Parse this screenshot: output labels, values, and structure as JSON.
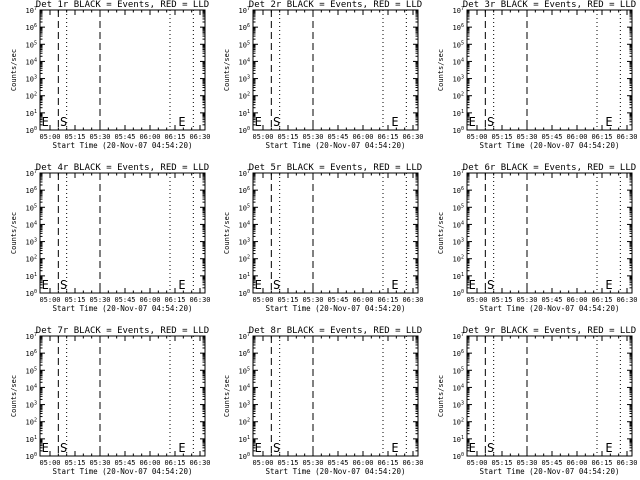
{
  "figure": {
    "background": "#ffffff",
    "foreground": "#000000",
    "event_color": "#000000",
    "lld_color": "#ff0000"
  },
  "chart_data": [
    {
      "type": "line",
      "title": "Det 1r BLACK = Events, RED = LLD",
      "xlabel": "Start Time (20-Nov-07 04:54:20)",
      "ylabel": "Counts/sec",
      "y_scale": "log",
      "ylim": [
        1,
        10000000
      ],
      "xticks": [
        "05:00",
        "05:15",
        "05:30",
        "05:45",
        "06:00",
        "06:15",
        "06:30"
      ],
      "yticks": [
        "10^0",
        "10^1",
        "10^2",
        "10^3",
        "10^4",
        "10^5",
        "10^6",
        "10^7"
      ],
      "markers": [
        {
          "label": "E",
          "x": "04:55"
        },
        {
          "label": "S",
          "x": "05:06"
        },
        {
          "label": "E",
          "x": "06:17"
        }
      ],
      "dashed_lines": [
        "05:05",
        "05:30"
      ],
      "dotted_lines": [
        "05:10",
        "06:12",
        "06:26"
      ],
      "series": []
    },
    {
      "type": "line",
      "title": "Det 2r BLACK = Events, RED = LLD",
      "xlabel": "Start Time (20-Nov-07 04:54:20)",
      "ylabel": "Counts/sec",
      "y_scale": "log",
      "ylim": [
        1,
        10000000
      ],
      "xticks": [
        "05:00",
        "05:15",
        "05:30",
        "05:45",
        "06:00",
        "06:15",
        "06:30"
      ],
      "yticks": [
        "10^0",
        "10^1",
        "10^2",
        "10^3",
        "10^4",
        "10^5",
        "10^6",
        "10^7"
      ],
      "markers": [
        {
          "label": "E",
          "x": "04:55"
        },
        {
          "label": "S",
          "x": "05:06"
        },
        {
          "label": "E",
          "x": "06:17"
        }
      ],
      "dashed_lines": [
        "05:05",
        "05:30"
      ],
      "dotted_lines": [
        "05:10",
        "06:12",
        "06:26"
      ],
      "series": []
    },
    {
      "type": "line",
      "title": "Det 3r BLACK = Events, RED = LLD",
      "xlabel": "Start Time (20-Nov-07 04:54:20)",
      "ylabel": "Counts/sec",
      "y_scale": "log",
      "ylim": [
        1,
        10000000
      ],
      "xticks": [
        "05:00",
        "05:15",
        "05:30",
        "05:45",
        "06:00",
        "06:15",
        "06:30"
      ],
      "yticks": [
        "10^0",
        "10^1",
        "10^2",
        "10^3",
        "10^4",
        "10^5",
        "10^6",
        "10^7"
      ],
      "markers": [
        {
          "label": "E",
          "x": "04:55"
        },
        {
          "label": "S",
          "x": "05:06"
        },
        {
          "label": "E",
          "x": "06:17"
        }
      ],
      "dashed_lines": [
        "05:05",
        "05:30"
      ],
      "dotted_lines": [
        "05:10",
        "06:12",
        "06:26"
      ],
      "series": []
    },
    {
      "type": "line",
      "title": "Det 4r BLACK = Events, RED = LLD",
      "xlabel": "Start Time (20-Nov-07 04:54:20)",
      "ylabel": "Counts/sec",
      "y_scale": "log",
      "ylim": [
        1,
        10000000
      ],
      "xticks": [
        "05:00",
        "05:15",
        "05:30",
        "05:45",
        "06:00",
        "06:15",
        "06:30"
      ],
      "yticks": [
        "10^0",
        "10^1",
        "10^2",
        "10^3",
        "10^4",
        "10^5",
        "10^6",
        "10^7"
      ],
      "markers": [
        {
          "label": "E",
          "x": "04:55"
        },
        {
          "label": "S",
          "x": "05:06"
        },
        {
          "label": "E",
          "x": "06:17"
        }
      ],
      "dashed_lines": [
        "05:05",
        "05:30"
      ],
      "dotted_lines": [
        "05:10",
        "06:12",
        "06:26"
      ],
      "series": []
    },
    {
      "type": "line",
      "title": "Det 5r BLACK = Events, RED = LLD",
      "xlabel": "Start Time (20-Nov-07 04:54:20)",
      "ylabel": "Counts/sec",
      "y_scale": "log",
      "ylim": [
        1,
        10000000
      ],
      "xticks": [
        "05:00",
        "05:15",
        "05:30",
        "05:45",
        "06:00",
        "06:15",
        "06:30"
      ],
      "yticks": [
        "10^0",
        "10^1",
        "10^2",
        "10^3",
        "10^4",
        "10^5",
        "10^6",
        "10^7"
      ],
      "markers": [
        {
          "label": "E",
          "x": "04:55"
        },
        {
          "label": "S",
          "x": "05:06"
        },
        {
          "label": "E",
          "x": "06:17"
        }
      ],
      "dashed_lines": [
        "05:05",
        "05:30"
      ],
      "dotted_lines": [
        "05:10",
        "06:12",
        "06:26"
      ],
      "series": []
    },
    {
      "type": "line",
      "title": "Det 6r BLACK = Events, RED = LLD",
      "xlabel": "Start Time (20-Nov-07 04:54:20)",
      "ylabel": "Counts/sec",
      "y_scale": "log",
      "ylim": [
        1,
        10000000
      ],
      "xticks": [
        "05:00",
        "05:15",
        "05:30",
        "05:45",
        "06:00",
        "06:15",
        "06:30"
      ],
      "yticks": [
        "10^0",
        "10^1",
        "10^2",
        "10^3",
        "10^4",
        "10^5",
        "10^6",
        "10^7"
      ],
      "markers": [
        {
          "label": "E",
          "x": "04:55"
        },
        {
          "label": "S",
          "x": "05:06"
        },
        {
          "label": "E",
          "x": "06:17"
        }
      ],
      "dashed_lines": [
        "05:05",
        "05:30"
      ],
      "dotted_lines": [
        "05:10",
        "06:12",
        "06:26"
      ],
      "series": []
    },
    {
      "type": "line",
      "title": "Det 7r BLACK = Events, RED = LLD",
      "xlabel": "Start Time (20-Nov-07 04:54:20)",
      "ylabel": "Counts/sec",
      "y_scale": "log",
      "ylim": [
        1,
        10000000
      ],
      "xticks": [
        "05:00",
        "05:15",
        "05:30",
        "05:45",
        "06:00",
        "06:15",
        "06:30"
      ],
      "yticks": [
        "10^0",
        "10^1",
        "10^2",
        "10^3",
        "10^4",
        "10^5",
        "10^6",
        "10^7"
      ],
      "markers": [
        {
          "label": "E",
          "x": "04:55"
        },
        {
          "label": "S",
          "x": "05:06"
        },
        {
          "label": "E",
          "x": "06:17"
        }
      ],
      "dashed_lines": [
        "05:05",
        "05:30"
      ],
      "dotted_lines": [
        "05:10",
        "06:12",
        "06:26"
      ],
      "series": []
    },
    {
      "type": "line",
      "title": "Det 8r BLACK = Events, RED = LLD",
      "xlabel": "Start Time (20-Nov-07 04:54:20)",
      "ylabel": "Counts/sec",
      "y_scale": "log",
      "ylim": [
        1,
        10000000
      ],
      "xticks": [
        "05:00",
        "05:15",
        "05:30",
        "05:45",
        "06:00",
        "06:15",
        "06:30"
      ],
      "yticks": [
        "10^0",
        "10^1",
        "10^2",
        "10^3",
        "10^4",
        "10^5",
        "10^6",
        "10^7"
      ],
      "markers": [
        {
          "label": "E",
          "x": "04:55"
        },
        {
          "label": "S",
          "x": "05:06"
        },
        {
          "label": "E",
          "x": "06:17"
        }
      ],
      "dashed_lines": [
        "05:05",
        "05:30"
      ],
      "dotted_lines": [
        "05:10",
        "06:12",
        "06:26"
      ],
      "series": []
    },
    {
      "type": "line",
      "title": "Det 9r BLACK = Events, RED = LLD",
      "xlabel": "Start Time (20-Nov-07 04:54:20)",
      "ylabel": "Counts/sec",
      "y_scale": "log",
      "ylim": [
        1,
        10000000
      ],
      "xticks": [
        "05:00",
        "05:15",
        "05:30",
        "05:45",
        "06:00",
        "06:15",
        "06:30"
      ],
      "yticks": [
        "10^0",
        "10^1",
        "10^2",
        "10^3",
        "10^4",
        "10^5",
        "10^6",
        "10^7"
      ],
      "markers": [
        {
          "label": "E",
          "x": "04:55"
        },
        {
          "label": "S",
          "x": "05:06"
        },
        {
          "label": "E",
          "x": "06:17"
        }
      ],
      "dashed_lines": [
        "05:05",
        "05:30"
      ],
      "dotted_lines": [
        "05:10",
        "06:12",
        "06:26"
      ],
      "series": []
    }
  ]
}
